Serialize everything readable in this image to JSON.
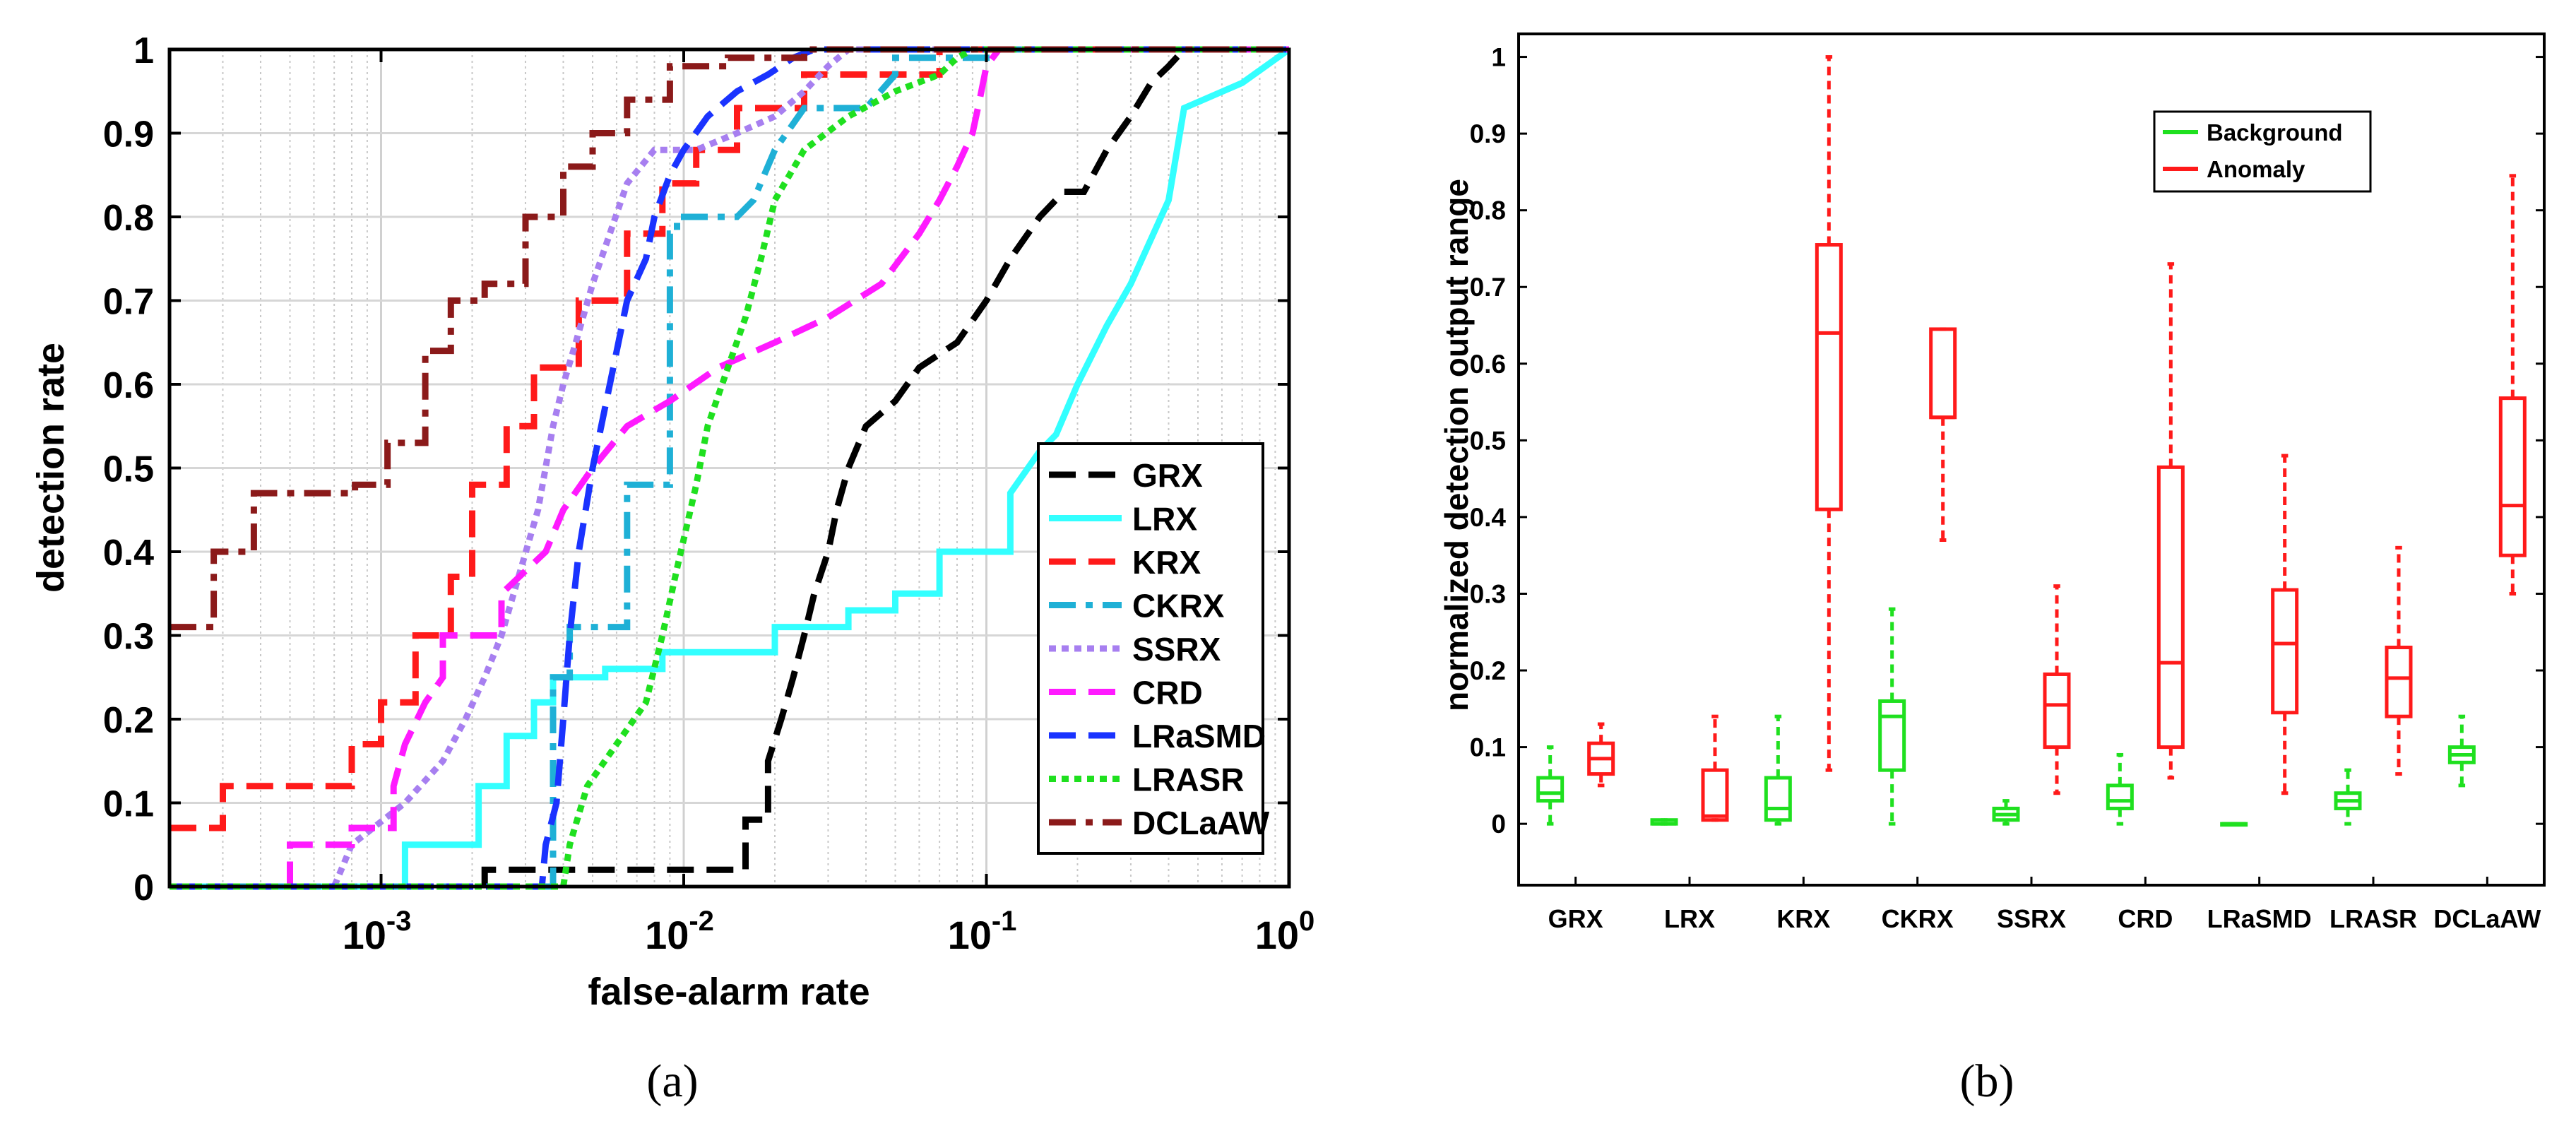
{
  "chart_data": [
    {
      "type": "line",
      "xscale": "log",
      "xlabel": "false-alarm rate",
      "ylabel": "detection rate",
      "xlim": [
        0.0002,
        1
      ],
      "ylim": [
        0,
        1
      ],
      "x_ticks": [
        {
          "base": "10",
          "exp": "-3",
          "value": 0.001
        },
        {
          "base": "10",
          "exp": "-2",
          "value": 0.01
        },
        {
          "base": "10",
          "exp": "-1",
          "value": 0.1
        },
        {
          "base": "10",
          "exp": "0",
          "value": 1
        }
      ],
      "y_ticks": [
        "0",
        "0.1",
        "0.2",
        "0.3",
        "0.4",
        "0.5",
        "0.6",
        "0.7",
        "0.8",
        "0.9",
        "1"
      ],
      "grid": true,
      "legend_position": "bottom-right",
      "caption": "(a)",
      "series": [
        {
          "name": "GRX",
          "color": "#000000",
          "dash": "38,18",
          "width": 9,
          "x": [
            0.0002,
            0.0022,
            0.0022,
            0.0037,
            0.0037,
            0.016,
            0.016,
            0.019,
            0.019,
            0.021,
            0.023,
            0.025,
            0.027,
            0.03,
            0.032,
            0.035,
            0.04,
            0.05,
            0.06,
            0.08,
            0.1,
            0.12,
            0.15,
            0.18,
            0.21,
            0.25,
            0.3,
            0.35,
            0.4,
            0.45,
            0.46,
            0.5,
            1.0
          ],
          "y": [
            0,
            0,
            0.02,
            0.02,
            0.02,
            0.02,
            0.08,
            0.08,
            0.15,
            0.2,
            0.25,
            0.3,
            0.35,
            0.4,
            0.45,
            0.5,
            0.55,
            0.58,
            0.62,
            0.65,
            0.7,
            0.75,
            0.8,
            0.83,
            0.83,
            0.88,
            0.92,
            0.96,
            0.98,
            1,
            1,
            1,
            1
          ]
        },
        {
          "name": "LRX",
          "color": "#33ffff",
          "dash": "none",
          "width": 9,
          "x": [
            0.0002,
            0.0012,
            0.0012,
            0.0021,
            0.0021,
            0.0026,
            0.0026,
            0.0032,
            0.0032,
            0.0037,
            0.0037,
            0.0055,
            0.0055,
            0.0085,
            0.0085,
            0.02,
            0.02,
            0.035,
            0.035,
            0.05,
            0.05,
            0.07,
            0.07,
            0.12,
            0.12,
            0.15,
            0.17,
            0.2,
            0.25,
            0.3,
            0.4,
            0.45,
            0.7,
            1.0
          ],
          "y": [
            0,
            0,
            0.05,
            0.05,
            0.12,
            0.12,
            0.18,
            0.18,
            0.22,
            0.22,
            0.25,
            0.25,
            0.26,
            0.26,
            0.28,
            0.28,
            0.31,
            0.31,
            0.33,
            0.33,
            0.35,
            0.35,
            0.4,
            0.4,
            0.47,
            0.52,
            0.54,
            0.6,
            0.67,
            0.72,
            0.82,
            0.93,
            0.96,
            1
          ]
        },
        {
          "name": "KRX",
          "color": "#ff1a1a",
          "dash": "38,18",
          "width": 9,
          "x": [
            0.0002,
            0.0003,
            0.0003,
            0.0008,
            0.0008,
            0.001,
            0.001,
            0.0013,
            0.0013,
            0.0017,
            0.0017,
            0.002,
            0.002,
            0.0026,
            0.0026,
            0.0032,
            0.0032,
            0.0045,
            0.0045,
            0.0065,
            0.0065,
            0.0085,
            0.0085,
            0.011,
            0.011,
            0.015,
            0.015,
            0.025,
            0.025,
            0.07,
            0.07,
            1
          ],
          "y": [
            0.07,
            0.07,
            0.12,
            0.12,
            0.17,
            0.17,
            0.22,
            0.22,
            0.3,
            0.3,
            0.37,
            0.37,
            0.48,
            0.48,
            0.55,
            0.55,
            0.62,
            0.62,
            0.7,
            0.7,
            0.78,
            0.78,
            0.84,
            0.84,
            0.88,
            0.88,
            0.93,
            0.93,
            0.97,
            0.97,
            1,
            1
          ]
        },
        {
          "name": "CKRX",
          "color": "#1fb0d6",
          "dash": "38,14,10,14",
          "width": 9,
          "x": [
            0.0002,
            0.0037,
            0.0037,
            0.0042,
            0.0042,
            0.0065,
            0.0065,
            0.009,
            0.009,
            0.0095,
            0.0095,
            0.012,
            0.015,
            0.017,
            0.02,
            0.025,
            0.03,
            0.04,
            0.05,
            0.05,
            0.1,
            0.1,
            1
          ],
          "y": [
            0,
            0,
            0.25,
            0.25,
            0.31,
            0.31,
            0.48,
            0.48,
            0.78,
            0.78,
            0.8,
            0.8,
            0.8,
            0.82,
            0.88,
            0.93,
            0.93,
            0.93,
            0.97,
            0.99,
            0.99,
            1,
            1
          ]
        },
        {
          "name": "SSRX",
          "color": "#a77ff0",
          "dash": "10,8",
          "width": 9,
          "x": [
            0.0002,
            0.0007,
            0.0008,
            0.0012,
            0.0016,
            0.0019,
            0.0022,
            0.0025,
            0.0029,
            0.0033,
            0.0037,
            0.004,
            0.0044,
            0.005,
            0.0057,
            0.0065,
            0.008,
            0.011,
            0.015,
            0.02,
            0.025,
            0.03,
            0.035,
            1
          ],
          "y": [
            0,
            0,
            0.05,
            0.1,
            0.15,
            0.2,
            0.25,
            0.3,
            0.38,
            0.45,
            0.55,
            0.6,
            0.65,
            0.72,
            0.78,
            0.84,
            0.88,
            0.88,
            0.9,
            0.92,
            0.95,
            0.98,
            1,
            1
          ]
        },
        {
          "name": "CRD",
          "color": "#ff1aff",
          "dash": "38,18",
          "width": 9,
          "x": [
            0.0002,
            0.0005,
            0.0005,
            0.0008,
            0.0008,
            0.0011,
            0.0011,
            0.0012,
            0.0014,
            0.0016,
            0.0016,
            0.0025,
            0.0025,
            0.0035,
            0.004,
            0.005,
            0.0065,
            0.009,
            0.013,
            0.02,
            0.03,
            0.045,
            0.06,
            0.07,
            0.08,
            0.09,
            0.095,
            0.1,
            0.11,
            1
          ],
          "y": [
            0,
            0,
            0.05,
            0.05,
            0.07,
            0.07,
            0.12,
            0.17,
            0.22,
            0.25,
            0.3,
            0.3,
            0.35,
            0.4,
            0.45,
            0.5,
            0.55,
            0.58,
            0.62,
            0.65,
            0.68,
            0.72,
            0.78,
            0.82,
            0.86,
            0.9,
            0.94,
            0.98,
            1,
            1
          ]
        },
        {
          "name": "LRaSMD",
          "color": "#1a33ff",
          "dash": "38,18",
          "width": 9,
          "x": [
            0.0002,
            0.0034,
            0.0035,
            0.0038,
            0.004,
            0.0042,
            0.0045,
            0.005,
            0.0057,
            0.0065,
            0.0075,
            0.008,
            0.009,
            0.01,
            0.012,
            0.015,
            0.019,
            0.023,
            0.027,
            0.03,
            1
          ],
          "y": [
            0,
            0,
            0.05,
            0.1,
            0.2,
            0.3,
            0.4,
            0.5,
            0.6,
            0.7,
            0.75,
            0.8,
            0.85,
            0.88,
            0.92,
            0.95,
            0.97,
            0.99,
            1,
            1,
            1
          ]
        },
        {
          "name": "LRASR",
          "color": "#1fe01f",
          "dash": "10,8",
          "width": 9,
          "x": [
            0.0002,
            0.004,
            0.0042,
            0.0048,
            0.006,
            0.0075,
            0.0085,
            0.0095,
            0.011,
            0.012,
            0.014,
            0.016,
            0.018,
            0.02,
            0.025,
            0.035,
            0.05,
            0.07,
            0.08,
            0.09,
            1
          ],
          "y": [
            0,
            0,
            0.05,
            0.12,
            0.17,
            0.22,
            0.3,
            0.38,
            0.48,
            0.55,
            0.62,
            0.68,
            0.75,
            0.82,
            0.88,
            0.92,
            0.95,
            0.97,
            0.99,
            1,
            1
          ]
        },
        {
          "name": "DCLaAW",
          "color": "#8b1a1a",
          "dash": "38,14,10,14",
          "width": 9,
          "x": [
            0.0002,
            0.00028,
            0.00028,
            0.00038,
            0.00038,
            0.00082,
            0.00082,
            0.00105,
            0.00105,
            0.0014,
            0.0014,
            0.0017,
            0.0017,
            0.0022,
            0.0022,
            0.003,
            0.003,
            0.004,
            0.004,
            0.005,
            0.005,
            0.0065,
            0.0065,
            0.009,
            0.009,
            0.014,
            0.014,
            0.025,
            0.025,
            1
          ],
          "y": [
            0.31,
            0.31,
            0.4,
            0.4,
            0.47,
            0.47,
            0.48,
            0.48,
            0.53,
            0.53,
            0.64,
            0.64,
            0.7,
            0.7,
            0.72,
            0.72,
            0.8,
            0.8,
            0.86,
            0.86,
            0.9,
            0.9,
            0.94,
            0.94,
            0.98,
            0.98,
            0.99,
            0.99,
            1,
            1
          ]
        }
      ]
    },
    {
      "type": "boxplot",
      "ylabel": "normalized detection output range",
      "ylim": [
        -0.08,
        1.03
      ],
      "y_ticks": [
        "0",
        "0.1",
        "0.2",
        "0.3",
        "0.4",
        "0.5",
        "0.6",
        "0.7",
        "0.8",
        "0.9",
        "1"
      ],
      "categories": [
        "GRX",
        "LRX",
        "KRX",
        "CKRX",
        "SSRX",
        "CRD",
        "LRaSMD",
        "LRASR",
        "DCLaAW"
      ],
      "legend": [
        {
          "name": "Background",
          "color": "#1fe01f"
        },
        {
          "name": "Anomaly",
          "color": "#ff1a1a"
        }
      ],
      "legend_position": "top-right",
      "caption": "(b)",
      "background": [
        {
          "min": 0.0,
          "q1": 0.03,
          "median": 0.04,
          "q3": 0.06,
          "max": 0.1
        },
        {
          "min": 0.0,
          "q1": 0.0,
          "median": 0.0,
          "q3": 0.005,
          "max": 0.005
        },
        {
          "min": 0.0,
          "q1": 0.005,
          "median": 0.02,
          "q3": 0.06,
          "max": 0.14
        },
        {
          "min": 0.0,
          "q1": 0.07,
          "median": 0.14,
          "q3": 0.16,
          "max": 0.28
        },
        {
          "min": 0.0,
          "q1": 0.005,
          "median": 0.012,
          "q3": 0.02,
          "max": 0.03
        },
        {
          "min": 0.0,
          "q1": 0.02,
          "median": 0.03,
          "q3": 0.05,
          "max": 0.09
        },
        {
          "min": 0.0,
          "q1": 0.0,
          "median": 0.0,
          "q3": 0.0,
          "max": 0.0
        },
        {
          "min": 0.0,
          "q1": 0.02,
          "median": 0.03,
          "q3": 0.04,
          "max": 0.07
        },
        {
          "min": 0.05,
          "q1": 0.08,
          "median": 0.09,
          "q3": 0.1,
          "max": 0.14
        }
      ],
      "anomaly": [
        {
          "min": 0.05,
          "q1": 0.065,
          "median": 0.085,
          "q3": 0.105,
          "max": 0.13
        },
        {
          "min": 0.005,
          "q1": 0.005,
          "median": 0.01,
          "q3": 0.07,
          "max": 0.14
        },
        {
          "min": 0.07,
          "q1": 0.41,
          "median": 0.64,
          "q3": 0.755,
          "max": 1.0
        },
        {
          "min": 0.37,
          "q1": 0.53,
          "median": 0.53,
          "q3": 0.645,
          "max": 0.645
        },
        {
          "min": 0.04,
          "q1": 0.1,
          "median": 0.155,
          "q3": 0.195,
          "max": 0.31
        },
        {
          "min": 0.06,
          "q1": 0.1,
          "median": 0.21,
          "q3": 0.465,
          "max": 0.73
        },
        {
          "min": 0.04,
          "q1": 0.145,
          "median": 0.235,
          "q3": 0.305,
          "max": 0.48
        },
        {
          "min": 0.065,
          "q1": 0.14,
          "median": 0.19,
          "q3": 0.23,
          "max": 0.36
        },
        {
          "min": 0.3,
          "q1": 0.35,
          "median": 0.415,
          "q3": 0.555,
          "max": 0.845
        }
      ]
    }
  ]
}
